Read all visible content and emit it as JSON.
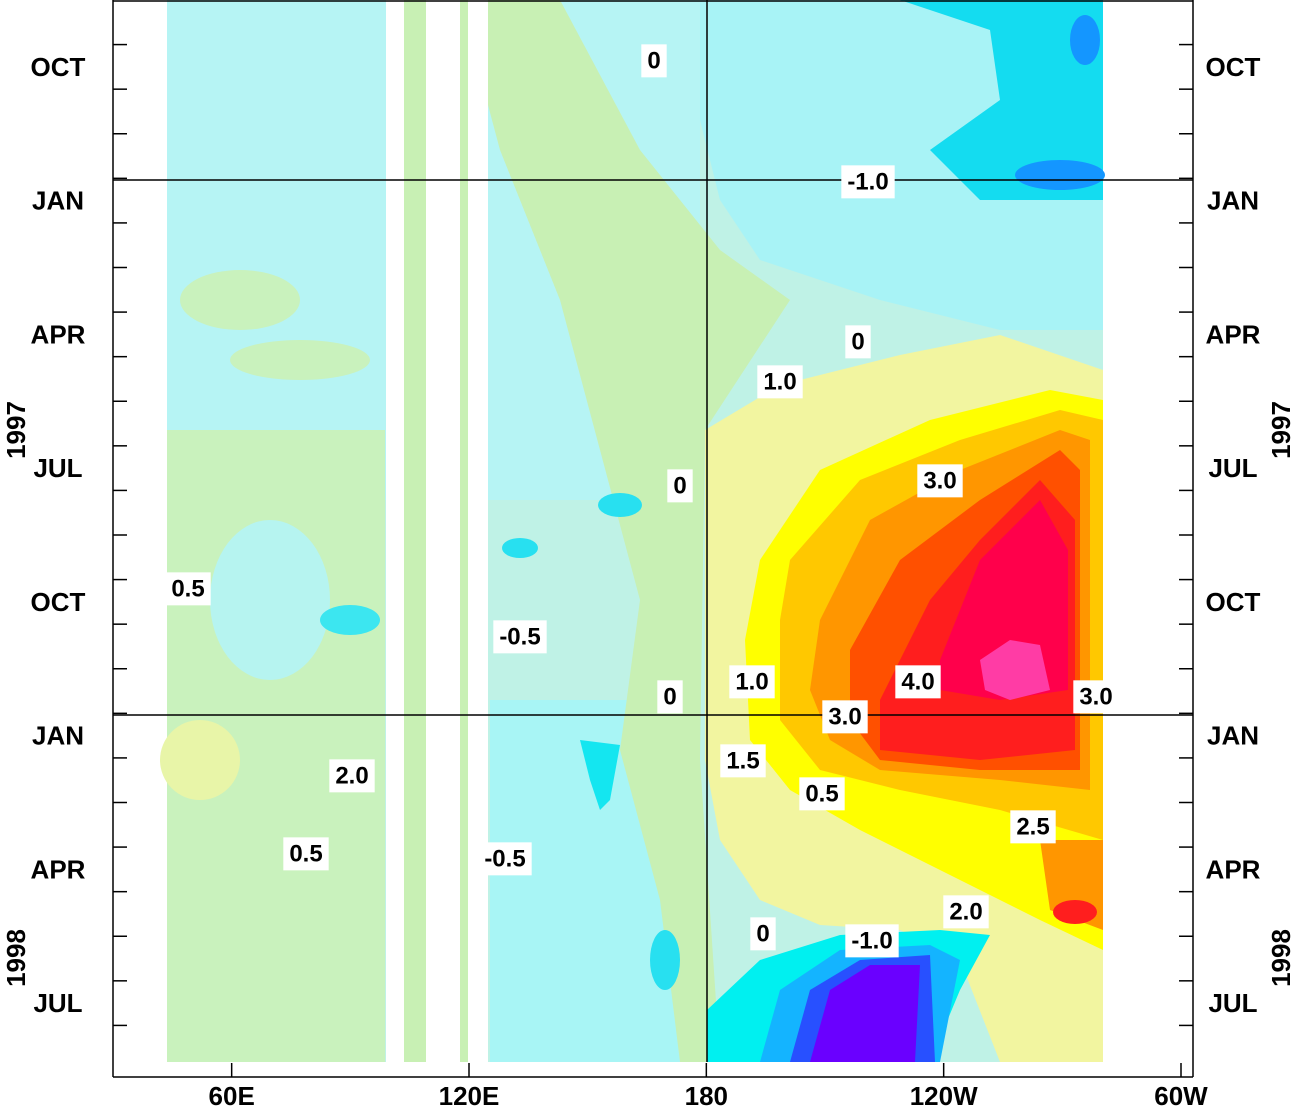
{
  "chart_data": {
    "type": "hovmoller",
    "xlim": [
      30,
      300
    ],
    "xticks": [
      {
        "value": 60,
        "label": "60E"
      },
      {
        "value": 120,
        "label": "120E"
      },
      180,
      {
        "value": 240,
        "label": "120W"
      },
      {
        "value": 300,
        "label": "60W"
      }
    ],
    "y_labels": [
      "OCT",
      "JAN",
      "APR",
      "JUL",
      "OCT",
      "JAN",
      "APR",
      "JUL"
    ],
    "years": [
      "1997",
      "1998"
    ],
    "contour_labels": [
      0,
      {
        "value": -1,
        "label": "-1.0"
      },
      0,
      {
        "value": 1,
        "label": "1.0"
      },
      0,
      {
        "value": 3,
        "label": "3.0"
      },
      0.5,
      -0.5,
      0,
      {
        "value": 1,
        "label": "1.0"
      },
      {
        "value": 4,
        "label": "4.0"
      },
      {
        "value": 3,
        "label": "3.0"
      },
      {
        "value": 3,
        "label": "3.0"
      },
      1.5,
      {
        "value": 2,
        "label": "2.0"
      },
      0.5,
      2.5,
      0.5,
      -0.5,
      {
        "value": 2,
        "label": "2.0"
      },
      0,
      {
        "value": -1,
        "label": "-1.0"
      }
    ]
  }
}
